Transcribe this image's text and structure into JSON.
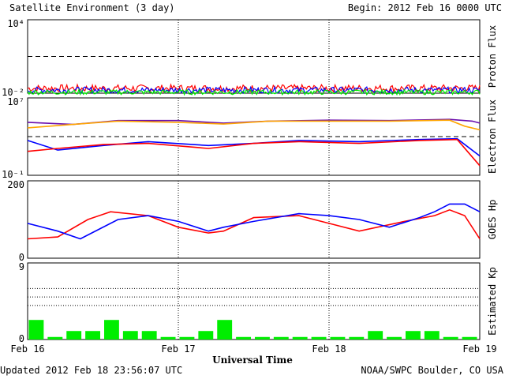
{
  "header": {
    "title": "Satellite Environment (3 day)",
    "begin": "Begin:  2012 Feb 16 0000 UTC"
  },
  "footer": {
    "updated": "Updated 2012 Feb 18 23:56:07 UTC",
    "source": "NOAA/SWPC Boulder, CO USA"
  },
  "colors": {
    "red": "#ff0000",
    "blue": "#0000ff",
    "green": "#00ee00",
    "orange": "#ffa500",
    "purple": "#6a0dad",
    "black": "#000000"
  },
  "chart_data": [
    {
      "type": "line",
      "ylabel": "Proton Flux",
      "yscale": "log",
      "ylim": [
        0.01,
        10000
      ],
      "y_tick_labels": [
        "10⁴",
        "10⁻²"
      ],
      "reference_lines": [
        10
      ],
      "xlim_days": [
        0,
        3
      ],
      "series": [
        {
          "color": "#ff0000",
          "level": 0.025,
          "noise": 0.6
        },
        {
          "color": "#0000ff",
          "level": 0.018,
          "noise": 0.5
        },
        {
          "color": "#00ee00",
          "level": 0.012,
          "noise": 0.4
        }
      ]
    },
    {
      "type": "line",
      "ylabel": "Electron Flux",
      "yscale": "log",
      "ylim": [
        0.1,
        10000000
      ],
      "y_tick_labels": [
        "10⁷",
        "10⁻¹"
      ],
      "reference_lines": [
        1000
      ],
      "xlim_days": [
        0,
        3
      ],
      "series": [
        {
          "color": "#6a0dad",
          "x": [
            0,
            0.3,
            0.6,
            1.0,
            1.3,
            1.6,
            2.0,
            2.4,
            2.8,
            2.95,
            3.0
          ],
          "y": [
            30000,
            18000,
            45000,
            45000,
            25000,
            40000,
            50000,
            45000,
            60000,
            40000,
            25000
          ]
        },
        {
          "color": "#ffa500",
          "x": [
            0,
            0.3,
            0.6,
            1.0,
            1.3,
            1.6,
            2.0,
            2.4,
            2.8,
            2.9,
            3.0
          ],
          "y": [
            8000,
            18000,
            40000,
            30000,
            20000,
            40000,
            40000,
            40000,
            50000,
            12000,
            5000
          ]
        },
        {
          "color": "#0000ff",
          "x": [
            0,
            0.2,
            0.5,
            0.8,
            1.2,
            1.5,
            1.8,
            2.2,
            2.6,
            2.85,
            3.0
          ],
          "y": [
            400,
            40,
            120,
            300,
            120,
            200,
            400,
            300,
            500,
            600,
            10
          ]
        },
        {
          "color": "#ff0000",
          "x": [
            0,
            0.2,
            0.5,
            0.8,
            1.2,
            1.5,
            1.8,
            2.2,
            2.6,
            2.85,
            3.0
          ],
          "y": [
            30,
            60,
            150,
            200,
            60,
            200,
            300,
            200,
            400,
            500,
            1
          ]
        }
      ]
    },
    {
      "type": "line",
      "ylabel": "GOES Hp",
      "yscale": "linear",
      "ylim": [
        0,
        200
      ],
      "y_tick_labels": [
        "200",
        "0"
      ],
      "xlim_days": [
        0,
        3
      ],
      "series": [
        {
          "color": "#ff0000",
          "x": [
            0,
            0.2,
            0.4,
            0.55,
            0.8,
            1.0,
            1.2,
            1.3,
            1.5,
            1.8,
            2.0,
            2.2,
            2.5,
            2.7,
            2.8,
            2.9,
            3.0
          ],
          "y": [
            50,
            55,
            100,
            120,
            110,
            80,
            65,
            70,
            105,
            110,
            90,
            70,
            95,
            110,
            125,
            110,
            50
          ]
        },
        {
          "color": "#0000ff",
          "x": [
            0,
            0.2,
            0.35,
            0.6,
            0.8,
            1.0,
            1.2,
            1.3,
            1.5,
            1.8,
            2.0,
            2.2,
            2.4,
            2.6,
            2.7,
            2.8,
            2.9,
            3.0
          ],
          "y": [
            90,
            70,
            50,
            100,
            110,
            95,
            70,
            80,
            95,
            115,
            110,
            100,
            80,
            105,
            120,
            140,
            140,
            120
          ]
        }
      ]
    },
    {
      "type": "bar",
      "ylabel": "Estimated Kp",
      "ylim": [
        0,
        9
      ],
      "y_tick_labels": [
        "9",
        "0"
      ],
      "reference_lines": [
        4,
        5,
        6
      ],
      "bar_color": "#00ee00",
      "values": [
        2.3,
        0.3,
        1,
        1,
        2.3,
        1,
        1,
        0.3,
        0.3,
        1,
        2.3,
        0.3,
        0.3,
        0.3,
        0.3,
        0.3,
        0.3,
        0.3,
        1,
        0.3,
        1,
        1,
        0.3,
        0.3
      ]
    }
  ],
  "xaxis": {
    "label": "Universal Time",
    "ticks": [
      "Feb 16",
      "Feb 17",
      "Feb 18",
      "Feb 19"
    ]
  }
}
